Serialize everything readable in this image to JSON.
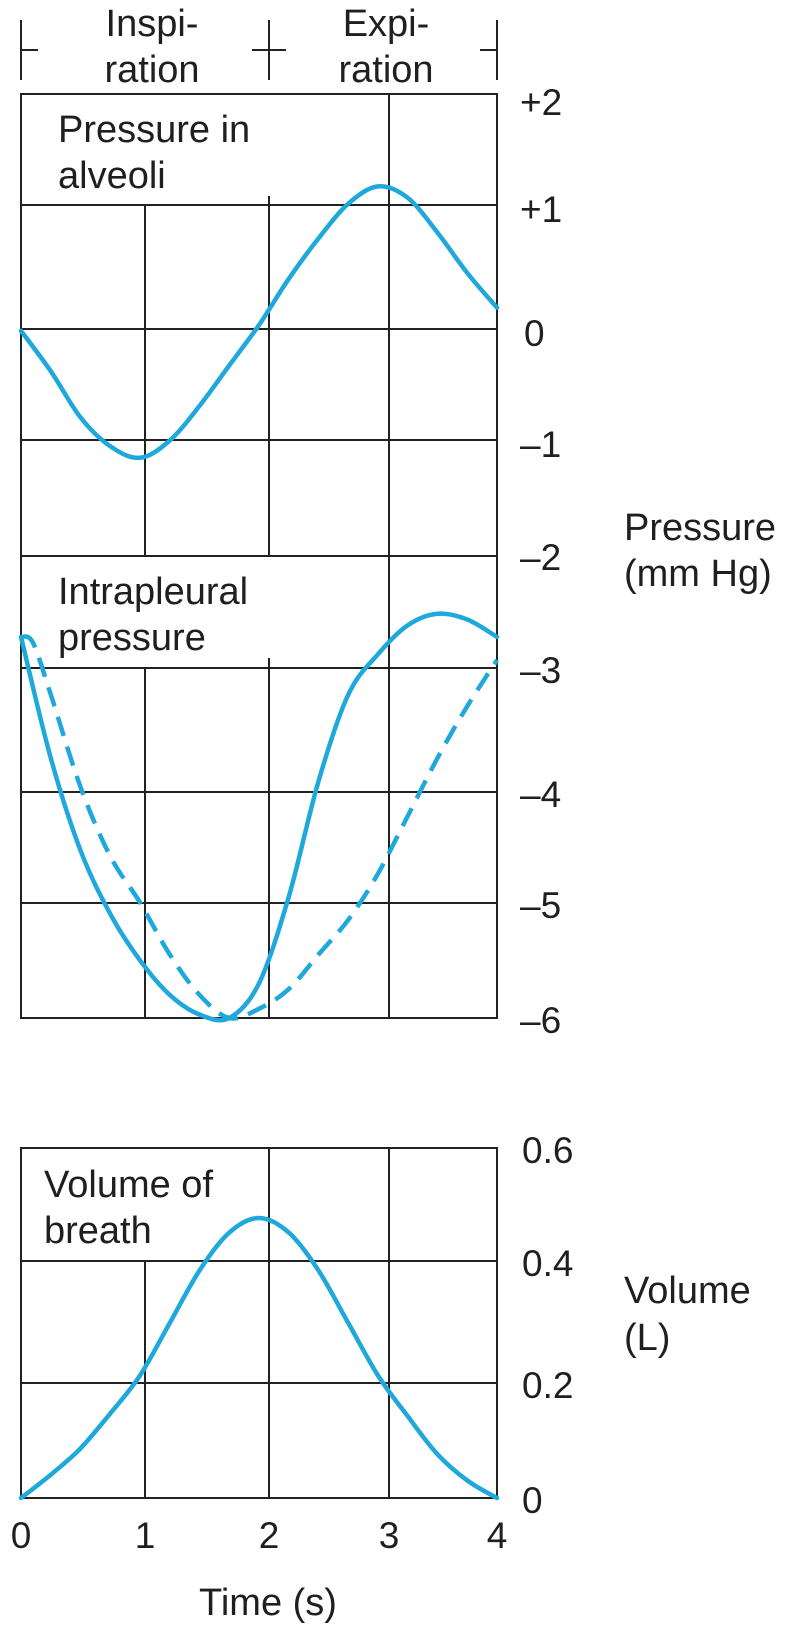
{
  "colors": {
    "curve": "#1fa8dc",
    "axis": "#222222",
    "text": "#1f1f1f"
  },
  "phases": [
    {
      "line1": "Inspi-",
      "line2": "ration"
    },
    {
      "line1": "Expi-",
      "line2": "ration"
    }
  ],
  "pressure_axis": {
    "title_line1": "Pressure",
    "title_line2": "(mm Hg)",
    "tick_labels": [
      "+2",
      "+1",
      "0",
      "–1",
      "–2",
      "–3",
      "–4",
      "–5",
      "–6"
    ]
  },
  "volume_axis": {
    "title_line1": "Volume",
    "title_line2": "(L)",
    "tick_labels": [
      "0.6",
      "0.4",
      "0.2",
      "0"
    ]
  },
  "time_axis": {
    "title": "Time (s)",
    "tick_labels": [
      "0",
      "1",
      "2",
      "3",
      "4"
    ]
  },
  "chart_data": [
    {
      "type": "line",
      "title": "Pressure in alveoli",
      "title_line1": "Pressure in",
      "title_line2": "alveoli",
      "xlim": [
        0,
        4
      ],
      "ylim": [
        -2,
        2
      ],
      "series": [
        {
          "x": [
            0,
            0.25,
            0.5,
            0.75,
            1.0,
            1.25,
            1.5,
            1.75,
            2.0,
            2.25,
            2.5,
            2.75,
            3.0,
            3.25,
            3.5,
            3.75,
            4.0
          ],
          "y": [
            -0.05,
            -0.4,
            -0.8,
            -1.05,
            -1.15,
            -1.0,
            -0.7,
            -0.35,
            0.0,
            0.4,
            0.75,
            1.05,
            1.2,
            1.1,
            0.8,
            0.45,
            0.15
          ]
        }
      ]
    },
    {
      "type": "line",
      "title": "Intrapleural pressure",
      "title_line1": "Intrapleural",
      "title_line2": "pressure",
      "xlim": [
        0,
        4
      ],
      "ylim": [
        -6,
        -2
      ],
      "series": [
        {
          "style": "solid",
          "x": [
            0,
            0.25,
            0.5,
            0.75,
            1.0,
            1.25,
            1.5,
            1.75,
            2.0,
            2.25,
            2.5,
            2.75,
            3.0,
            3.25,
            3.5,
            3.75,
            4.0
          ],
          "y": [
            -2.7,
            -3.75,
            -4.55,
            -5.1,
            -5.5,
            -5.8,
            -5.97,
            -6.0,
            -5.7,
            -4.95,
            -3.95,
            -3.2,
            -2.85,
            -2.6,
            -2.5,
            -2.55,
            -2.7
          ]
        },
        {
          "style": "dashed",
          "x": [
            0,
            0.1,
            0.25,
            0.5,
            0.75,
            1.0,
            1.25,
            1.5,
            1.75,
            2.0,
            2.25,
            2.5,
            2.75,
            3.0,
            3.25,
            3.5,
            3.75,
            4.0
          ],
          "y": [
            -2.7,
            -2.75,
            -3.2,
            -4.0,
            -4.6,
            -5.0,
            -5.45,
            -5.8,
            -6.0,
            -5.92,
            -5.75,
            -5.45,
            -5.15,
            -4.75,
            -4.25,
            -3.75,
            -3.3,
            -2.9
          ]
        }
      ]
    },
    {
      "type": "line",
      "title": "Volume of breath",
      "title_line1": "Volume of",
      "title_line2": "breath",
      "xlim": [
        0,
        4
      ],
      "ylim": [
        0,
        0.6
      ],
      "series": [
        {
          "x": [
            0,
            0.25,
            0.5,
            0.75,
            1.0,
            1.25,
            1.5,
            1.75,
            2.0,
            2.25,
            2.5,
            2.75,
            3.0,
            3.25,
            3.5,
            3.75,
            4.0
          ],
          "y": [
            0.0,
            0.04,
            0.085,
            0.145,
            0.21,
            0.3,
            0.39,
            0.455,
            0.48,
            0.455,
            0.39,
            0.3,
            0.21,
            0.14,
            0.075,
            0.03,
            0.0
          ]
        }
      ]
    }
  ]
}
